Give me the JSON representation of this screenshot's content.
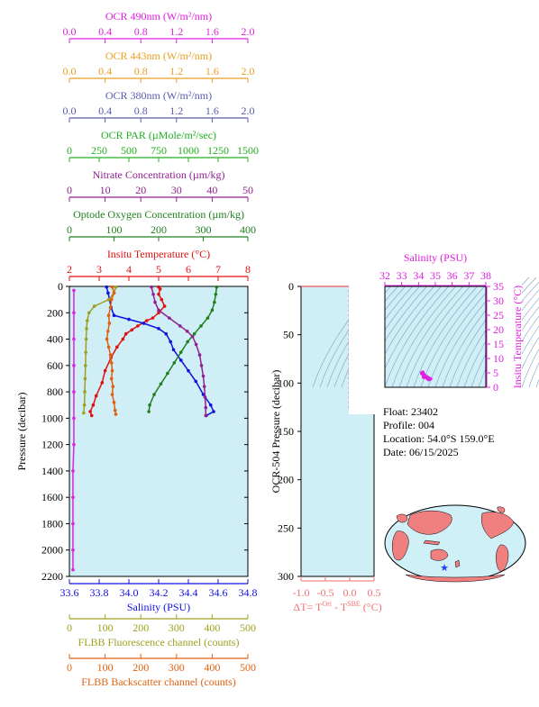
{
  "chart_data": [
    {
      "type": "line",
      "name": "profile",
      "ylabel": "Pressure (decibar)",
      "ylim": [
        0,
        2200
      ],
      "yreversed": true,
      "yticks": [
        0,
        200,
        400,
        600,
        800,
        1000,
        1200,
        1400,
        1600,
        1800,
        2000,
        2200
      ],
      "background": "#cfeef6",
      "top_axes": [
        {
          "label": "OCR 490nm (W/m²/nm)",
          "color": "#e020e0",
          "min": 0,
          "max": 2,
          "ticks": [
            "0.0",
            "0.4",
            "0.8",
            "1.2",
            "1.6",
            "2.0"
          ]
        },
        {
          "label": "OCR 443nm (W/m²/nm)",
          "color": "#e8a020",
          "min": 0,
          "max": 2,
          "ticks": [
            "0.0",
            "0.4",
            "0.8",
            "1.2",
            "1.6",
            "2.0"
          ]
        },
        {
          "label": "OCR 380nm (W/m²/nm)",
          "color": "#5a5ab0",
          "min": 0,
          "max": 2,
          "ticks": [
            "0.0",
            "0.4",
            "0.8",
            "1.2",
            "1.6",
            "2.0"
          ]
        },
        {
          "label": "OCR PAR (µMole/m²/sec)",
          "color": "#20b020",
          "min": 0,
          "max": 1500,
          "ticks": [
            "0",
            "250",
            "500",
            "750",
            "1000",
            "1250",
            "1500"
          ]
        },
        {
          "label": "Nitrate Concentration (µm/kg)",
          "color": "#902090",
          "min": 0,
          "max": 50,
          "ticks": [
            "0",
            "10",
            "20",
            "30",
            "40",
            "50"
          ]
        },
        {
          "label": "Optode Oxygen Concentration (µm/kg)",
          "color": "#208020",
          "min": 0,
          "max": 400,
          "ticks": [
            "0",
            "100",
            "200",
            "300",
            "400"
          ]
        },
        {
          "label": "Insitu Temperature (°C)",
          "color": "#e01010",
          "min": 2,
          "max": 8,
          "ticks": [
            "2",
            "3",
            "4",
            "5",
            "6",
            "7",
            "8"
          ]
        }
      ],
      "bottom_axes": [
        {
          "label": "Salinity (PSU)",
          "color": "#1010e0",
          "min": 33.6,
          "max": 34.8,
          "ticks": [
            "33.6",
            "33.8",
            "34.0",
            "34.2",
            "34.4",
            "34.6",
            "34.8"
          ]
        },
        {
          "label": "FLBB Fluorescence channel (counts)",
          "color": "#a0a020",
          "min": 0,
          "max": 500,
          "ticks": [
            "0",
            "100",
            "200",
            "300",
            "400",
            "500"
          ]
        },
        {
          "label": "FLBB Backscatter channel (counts)",
          "color": "#e06010",
          "min": 0,
          "max": 500,
          "ticks": [
            "0",
            "100",
            "200",
            "300",
            "400",
            "500"
          ]
        }
      ],
      "series": [
        {
          "name": "Insitu Temperature",
          "axis": 6,
          "color": "#e01010",
          "points": [
            [
              5.0,
              5
            ],
            [
              5.05,
              20
            ],
            [
              5.0,
              60
            ],
            [
              5.1,
              100
            ],
            [
              5.2,
              150
            ],
            [
              5.0,
              200
            ],
            [
              4.8,
              240
            ],
            [
              4.6,
              260
            ],
            [
              4.3,
              300
            ],
            [
              4.1,
              330
            ],
            [
              3.9,
              360
            ],
            [
              3.8,
              400
            ],
            [
              3.6,
              460
            ],
            [
              3.4,
              540
            ],
            [
              3.2,
              640
            ],
            [
              3.1,
              730
            ],
            [
              2.9,
              830
            ],
            [
              2.8,
              900
            ],
            [
              2.7,
              950
            ],
            [
              2.75,
              980
            ]
          ]
        },
        {
          "name": "Salinity",
          "axis": "b0",
          "color": "#1010e0",
          "points": [
            [
              33.85,
              5
            ],
            [
              33.86,
              50
            ],
            [
              33.87,
              100
            ],
            [
              33.88,
              160
            ],
            [
              33.9,
              220
            ],
            [
              34.0,
              250
            ],
            [
              34.1,
              280
            ],
            [
              34.2,
              320
            ],
            [
              34.25,
              360
            ],
            [
              34.28,
              420
            ],
            [
              34.3,
              480
            ],
            [
              34.35,
              560
            ],
            [
              34.4,
              640
            ],
            [
              34.45,
              720
            ],
            [
              34.5,
              820
            ],
            [
              34.55,
              900
            ],
            [
              34.57,
              950
            ],
            [
              34.52,
              980
            ]
          ]
        },
        {
          "name": "Optode Oxygen Concentration",
          "axis": 5,
          "color": "#208020",
          "points": [
            [
              330,
              5
            ],
            [
              328,
              60
            ],
            [
              325,
              120
            ],
            [
              320,
              180
            ],
            [
              310,
              240
            ],
            [
              295,
              300
            ],
            [
              280,
              360
            ],
            [
              265,
              420
            ],
            [
              250,
              500
            ],
            [
              235,
              580
            ],
            [
              220,
              660
            ],
            [
              205,
              740
            ],
            [
              190,
              820
            ],
            [
              180,
              900
            ],
            [
              178,
              950
            ]
          ]
        },
        {
          "name": "Nitrate Concentration",
          "axis": 4,
          "color": "#902090",
          "points": [
            [
              23,
              5
            ],
            [
              23.5,
              60
            ],
            [
              24,
              120
            ],
            [
              25,
              180
            ],
            [
              28,
              240
            ],
            [
              31,
              300
            ],
            [
              33,
              340
            ],
            [
              34.5,
              380
            ],
            [
              35.5,
              440
            ],
            [
              36.5,
              520
            ],
            [
              37,
              600
            ],
            [
              37.5,
              680
            ],
            [
              37.8,
              760
            ],
            [
              38,
              840
            ],
            [
              38.2,
              920
            ],
            [
              38.2,
              980
            ]
          ]
        },
        {
          "name": "FLBB Fluorescence channel",
          "axis": "b1",
          "color": "#a0a020",
          "points": [
            [
              130,
              5
            ],
            [
              125,
              50
            ],
            [
              110,
              100
            ],
            [
              70,
              150
            ],
            [
              55,
              200
            ],
            [
              50,
              260
            ],
            [
              48,
              320
            ],
            [
              47,
              400
            ],
            [
              46,
              500
            ],
            [
              45,
              600
            ],
            [
              44,
              700
            ],
            [
              43,
              800
            ],
            [
              42,
              900
            ],
            [
              40,
              960
            ]
          ]
        },
        {
          "name": "FLBB Backscatter channel",
          "axis": "b2",
          "color": "#e06010",
          "points": [
            [
              120,
              5
            ],
            [
              125,
              50
            ],
            [
              118,
              100
            ],
            [
              115,
              160
            ],
            [
              110,
              220
            ],
            [
              112,
              280
            ],
            [
              108,
              340
            ],
            [
              105,
              400
            ],
            [
              110,
              460
            ],
            [
              115,
              520
            ],
            [
              118,
              580
            ],
            [
              120,
              640
            ],
            [
              118,
              700
            ],
            [
              122,
              760
            ],
            [
              120,
              820
            ],
            [
              125,
              880
            ],
            [
              128,
              940
            ],
            [
              130,
              970
            ]
          ]
        },
        {
          "name": "OCR 490nm",
          "axis": 0,
          "color": "#e020e0",
          "points": [
            [
              0.05,
              30
            ],
            [
              0.05,
              200
            ],
            [
              0.05,
              400
            ],
            [
              0.05,
              600
            ],
            [
              0.05,
              800
            ],
            [
              0.05,
              1000
            ],
            [
              0.05,
              1200
            ],
            [
              0.04,
              1400
            ],
            [
              0.04,
              1600
            ],
            [
              0.04,
              1800
            ],
            [
              0.04,
              2000
            ],
            [
              0.04,
              2150
            ]
          ]
        }
      ]
    },
    {
      "type": "scatter",
      "name": "ocr504",
      "ylabel": "OCR-504 Pressure (decibar)",
      "ylim": [
        0,
        300
      ],
      "yreversed": true,
      "yticks": [
        0,
        50,
        100,
        150,
        200,
        250,
        300
      ],
      "xlim": [
        -1.0,
        0.5
      ],
      "xticks": [
        "-1.0",
        "-0.5",
        "0.0",
        "0.5"
      ],
      "xlabel_main": "ΔT= T",
      "xlabel_sup1": "Ori",
      "xlabel_mid": " - T",
      "xlabel_sup2": "SBE",
      "xlabel_unit": " (°C)",
      "color": "#f07070",
      "points": [
        [
          0.0,
          0
        ],
        [
          0.0,
          5
        ],
        [
          0.0,
          10
        ],
        [
          0.0,
          15
        ],
        [
          0.0,
          20
        ],
        [
          0.0,
          25
        ],
        [
          0.0,
          30
        ],
        [
          0.0,
          35
        ],
        [
          0.0,
          40
        ],
        [
          0.0,
          45
        ],
        [
          0.0,
          50
        ],
        [
          0.0,
          55
        ],
        [
          0.0,
          60
        ],
        [
          0.0,
          65
        ],
        [
          0.0,
          70
        ],
        [
          0.0,
          75
        ],
        [
          0.0,
          80
        ],
        [
          0.0,
          85
        ],
        [
          0.0,
          90
        ],
        [
          0.0,
          95
        ],
        [
          0.0,
          100
        ],
        [
          0.0,
          105
        ],
        [
          0.0,
          110
        ],
        [
          0.0,
          115
        ],
        [
          0.0,
          120
        ],
        [
          0.0,
          125
        ]
      ]
    },
    {
      "type": "scatter",
      "name": "ts",
      "xlabel": "Salinity (PSU)",
      "ylabel": "Insitu Temperature (°C)",
      "xlim": [
        32,
        38
      ],
      "ylim": [
        0,
        35
      ],
      "xticks": [
        "32",
        "33",
        "34",
        "35",
        "36",
        "37",
        "38"
      ],
      "yticks": [
        "0",
        "5",
        "10",
        "15",
        "20",
        "25",
        "30",
        "35"
      ],
      "color": "#e020e0",
      "points": [
        [
          34.2,
          4.8
        ],
        [
          34.3,
          4.5
        ],
        [
          34.4,
          4.0
        ],
        [
          34.5,
          3.6
        ],
        [
          34.6,
          3.2
        ],
        [
          34.7,
          2.9
        ],
        [
          34.6,
          2.7
        ],
        [
          34.3,
          3.5
        ],
        [
          34.2,
          5.0
        ],
        [
          34.25,
          5.2
        ]
      ]
    }
  ],
  "info": {
    "float": "Float:  23402",
    "profile": "Profile:  004",
    "location": "Location:  54.0°S  159.0°E",
    "date": "Date:  06/15/2025"
  },
  "map": {
    "land_color": "#f08080",
    "ocean_color": "#d0f0f8",
    "marker_color": "#2040ff"
  }
}
